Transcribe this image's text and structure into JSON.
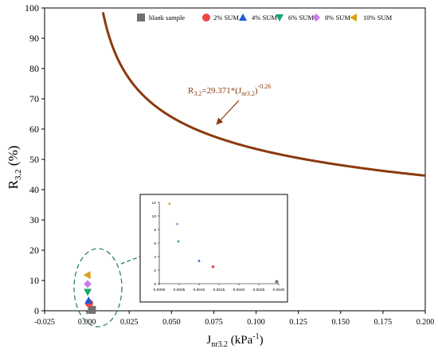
{
  "chart_data": {
    "type": "scatter",
    "title": "",
    "xlabel": "J_nr3.2 (kPa^-1)",
    "ylabel": "R_3.2 (%)",
    "xlim": [
      -0.025,
      0.2
    ],
    "ylim": [
      0,
      100
    ],
    "x_ticks": [
      "-0.025",
      "0.000",
      "0.025",
      "0.050",
      "0.075",
      "0.100",
      "0.125",
      "0.150",
      "0.175",
      "0.200"
    ],
    "y_ticks": [
      "0",
      "10",
      "20",
      "30",
      "40",
      "50",
      "60",
      "70",
      "80",
      "90",
      "100"
    ],
    "grid": false,
    "legend_position": "top",
    "legend": [
      "blank sample",
      "2% SUM",
      "4% SUM",
      "6% SUM",
      "8% SUM",
      "10% SUM"
    ],
    "series": [
      {
        "name": "blank sample",
        "marker": "square",
        "color": "#707070",
        "points": [
          [
            0.00295,
            0.3
          ]
        ]
      },
      {
        "name": "2% SUM",
        "marker": "circle",
        "color": "#ef4548",
        "points": [
          [
            0.00135,
            2.5
          ]
        ]
      },
      {
        "name": "4% SUM",
        "marker": "triangle-up",
        "color": "#1f58d6",
        "points": [
          [
            0.001,
            3.4
          ]
        ]
      },
      {
        "name": "6% SUM",
        "marker": "triangle-down",
        "color": "#18a66a",
        "points": [
          [
            0.00048,
            6.2
          ]
        ]
      },
      {
        "name": "8% SUM",
        "marker": "diamond",
        "color": "#c77fe8",
        "points": [
          [
            0.00045,
            8.8
          ]
        ]
      },
      {
        "name": "10% SUM",
        "marker": "triangle-left",
        "color": "#d9a01a",
        "points": [
          [
            0.00025,
            11.8
          ]
        ]
      }
    ],
    "fit_curve": {
      "equation_label": "R3.2=29.371*(Jnr3.2)^-0.26",
      "coefficient": 29.371,
      "exponent": -0.26,
      "x_range": [
        0.0095,
        0.2
      ],
      "color": "#8b3a0e"
    },
    "inset": {
      "xlim": [
        0,
        0.003
      ],
      "ylim": [
        0,
        12
      ],
      "x_ticks": [
        "0.0000",
        "0.0005",
        "0.0010",
        "0.0015",
        "0.0020",
        "0.0025",
        "0.0030"
      ],
      "y_ticks": [
        "0",
        "2",
        "4",
        "6",
        "8",
        "10",
        "12"
      ]
    }
  }
}
